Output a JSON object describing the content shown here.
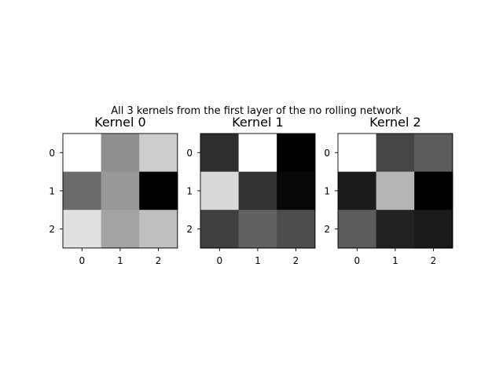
{
  "figure": {
    "suptitle": "All 3 kernels from the first layer of the no rolling network"
  },
  "chart_data": [
    {
      "type": "heatmap",
      "title": "Kernel 0",
      "x_ticks": [
        "0",
        "1",
        "2"
      ],
      "y_ticks": [
        "0",
        "1",
        "2"
      ],
      "colormap": "gray",
      "values": [
        [
          1.0,
          0.56,
          0.8
        ],
        [
          0.42,
          0.6,
          0.0
        ],
        [
          0.88,
          0.64,
          0.75
        ]
      ]
    },
    {
      "type": "heatmap",
      "title": "Kernel 1",
      "x_ticks": [
        "0",
        "1",
        "2"
      ],
      "y_ticks": [
        "0",
        "1",
        "2"
      ],
      "colormap": "gray",
      "values": [
        [
          0.18,
          1.0,
          0.0
        ],
        [
          0.85,
          0.2,
          0.03
        ],
        [
          0.25,
          0.38,
          0.3
        ]
      ]
    },
    {
      "type": "heatmap",
      "title": "Kernel 2",
      "x_ticks": [
        "0",
        "1",
        "2"
      ],
      "y_ticks": [
        "0",
        "1",
        "2"
      ],
      "colormap": "gray",
      "values": [
        [
          1.0,
          0.27,
          0.36
        ],
        [
          0.11,
          0.71,
          0.0
        ],
        [
          0.36,
          0.13,
          0.1
        ]
      ]
    }
  ]
}
